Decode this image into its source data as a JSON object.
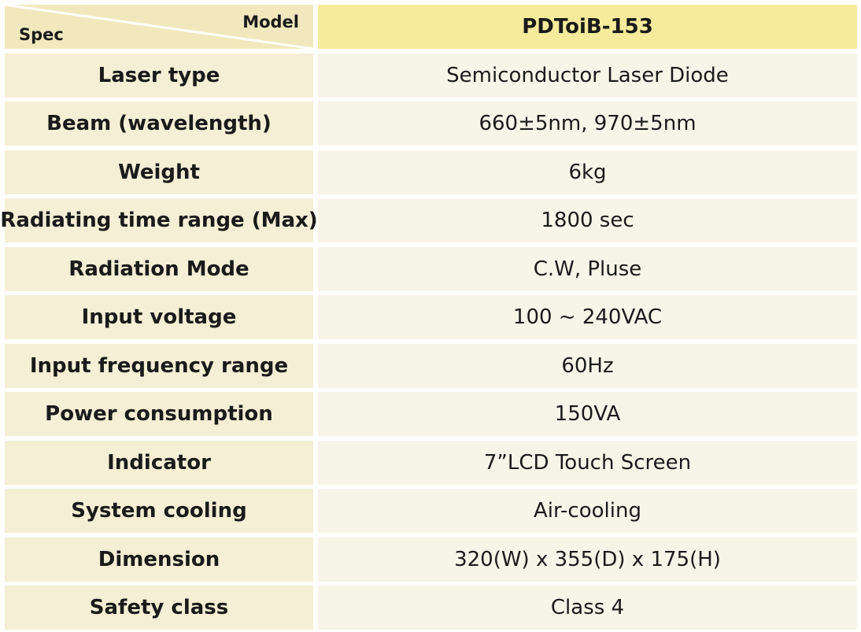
{
  "header": {
    "spec_label": "Spec",
    "model_label": "Model",
    "model_name": "PDToiB-153"
  },
  "rows": [
    {
      "label": "Laser type",
      "value": "Semiconductor Laser Diode"
    },
    {
      "label": "Beam (wavelength)",
      "value": "660±5nm, 970±5nm"
    },
    {
      "label": "Weight",
      "value": "6kg"
    },
    {
      "label": "Radiating time range (Max)",
      "value": "1800 sec"
    },
    {
      "label": "Radiation Mode",
      "value": "C.W, Pluse"
    },
    {
      "label": "Input voltage",
      "value": "100 ~ 240VAC"
    },
    {
      "label": "Input frequency range",
      "value": "60Hz"
    },
    {
      "label": "Power consumption",
      "value": "150VA"
    },
    {
      "label": "Indicator",
      "value": "7”LCD Touch Screen"
    },
    {
      "label": "System cooling",
      "value": "Air-cooling"
    },
    {
      "label": "Dimension",
      "value": "320(W) x 355(D) x 175(H)"
    },
    {
      "label": "Safety class",
      "value": "Class 4"
    }
  ],
  "colors": {
    "header_corner_bg": "#f1e9bd",
    "header_model_bg": "#f5eb9b",
    "label_bg": "#f4efd5",
    "value_bg": "#f7f5e7"
  }
}
